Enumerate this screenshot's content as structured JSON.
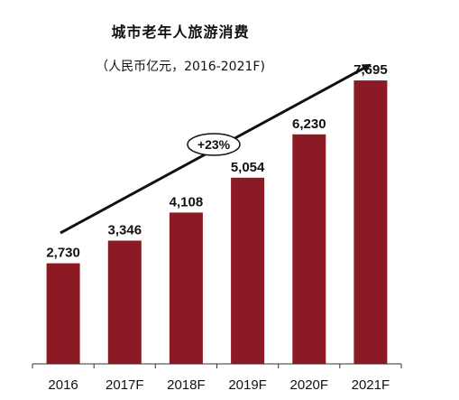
{
  "chart_data": {
    "type": "bar",
    "title": "城市老年人旅游消费",
    "subtitle": "（人民币亿元，2016-2021F)",
    "categories": [
      "2016",
      "2017F",
      "2018F",
      "2019F",
      "2020F",
      "2021F"
    ],
    "values": [
      2730,
      3346,
      4108,
      5054,
      6230,
      7695
    ],
    "value_labels": [
      "2,730",
      "3,346",
      "4,108",
      "5,054",
      "6,230",
      "7,695"
    ],
    "annotation": "+23%",
    "ylim": [
      0,
      8800
    ],
    "bar_color": "#8b1a24",
    "grid": false,
    "legend": "none"
  }
}
